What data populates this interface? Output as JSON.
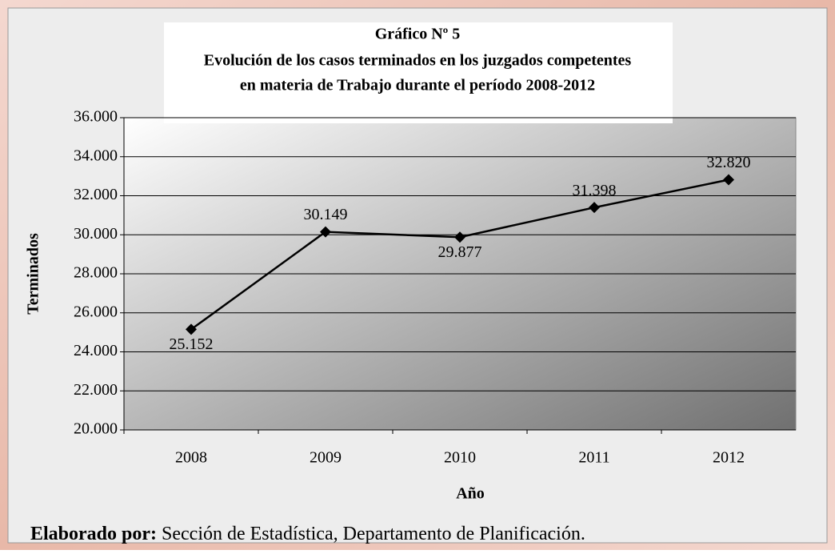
{
  "chart_data": {
    "type": "line",
    "title": "Gráfico Nº 5",
    "subtitle": [
      "Evolución de los casos terminados en los juzgados competentes",
      "en materia de Trabajo durante el período 2008-2012"
    ],
    "x_label": "Año",
    "y_label": "Terminados",
    "categories": [
      "2008",
      "2009",
      "2010",
      "2011",
      "2012"
    ],
    "values": [
      25152,
      30149,
      29877,
      31398,
      32820
    ],
    "value_labels": [
      "25.152",
      "30.149",
      "29.877",
      "31.398",
      "32.820"
    ],
    "color": "#000000",
    "ylim": [
      20000,
      36000
    ],
    "yticks": [
      {
        "value": 20000,
        "label": "20.000"
      },
      {
        "value": 22000,
        "label": "22.000"
      },
      {
        "value": 24000,
        "label": "24.000"
      },
      {
        "value": 26000,
        "label": "26.000"
      },
      {
        "value": 28000,
        "label": "28.000"
      },
      {
        "value": 30000,
        "label": "30.000"
      },
      {
        "value": 32000,
        "label": "32.000"
      },
      {
        "value": 34000,
        "label": "34.000"
      },
      {
        "value": 36000,
        "label": "36.000"
      }
    ],
    "grid": true,
    "source": {
      "label": "Elaborado por:",
      "text": "Sección de Estadística, Departamento de Planificación."
    }
  }
}
